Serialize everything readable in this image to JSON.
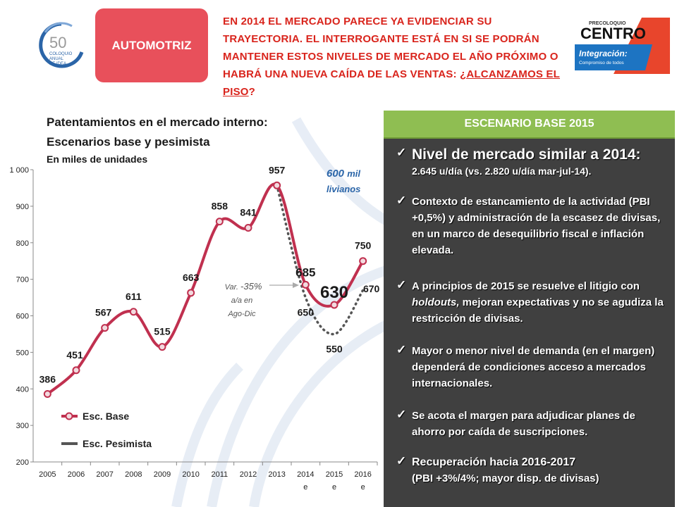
{
  "header": {
    "badge": "AUTOMOTRIZ",
    "headline_main": "EN 2014 EL MERCADO PARECE YA EVIDENCIAR SU TRAYECTORIA. EL INTERROGANTE ESTÁ EN SI SE PODRÁN MANTENER ESTOS NIVELES DE MERCADO EL AÑO PRÓXIMO O HABRÁ UNA NUEVA CAÍDA DE LAS VENTAS:",
    "headline_underlined": "¿ALCANZAMOS EL PISO",
    "headline_end": "?"
  },
  "logo_left": {
    "number": "50",
    "line1": "COLOQUIO",
    "line2": "ANUAL",
    "line3": "DE IDEA"
  },
  "logo_right": {
    "top": "PRECOLOQUIO",
    "name": "CENTRO",
    "slogan": "Integración:",
    "slogan_sub": "Compromiso de todos"
  },
  "chart_title": {
    "line1": "Patentamientos en el mercado interno:",
    "line2": "Escenarios base y pesimista",
    "line3": "En miles de unidades"
  },
  "chart_data": {
    "type": "line",
    "categories": [
      "2005",
      "2006",
      "2007",
      "2008",
      "2009",
      "2010",
      "2011",
      "2012",
      "2013",
      "2014 e",
      "2015 e",
      "2016 e"
    ],
    "series": [
      {
        "name": "Esc. Base",
        "color": "#c0304f",
        "values": [
          386,
          451,
          567,
          611,
          515,
          663,
          858,
          841,
          957,
          685,
          630,
          750
        ]
      },
      {
        "name": "Esc. Pesimista",
        "color": "#555555",
        "values": [
          null,
          null,
          null,
          null,
          null,
          null,
          null,
          null,
          957,
          650,
          550,
          670
        ]
      }
    ],
    "data_labels": [
      "386",
      "451",
      "567",
      "611",
      "515",
      "663",
      "858",
      "841",
      "957",
      "685",
      "630",
      "750"
    ],
    "pesimista_labels": [
      "650",
      "550",
      "670"
    ],
    "ylim": [
      200,
      1000
    ],
    "yticks": [
      "1 000",
      "900",
      "800",
      "700",
      "600",
      "500",
      "400",
      "300",
      "200"
    ],
    "ytick_values": [
      1000,
      900,
      800,
      700,
      600,
      500,
      400,
      300,
      200
    ],
    "annotation_livianos": {
      "value": "600",
      "unit": "mil",
      "line2": "livianos"
    },
    "annotation_var": {
      "line1a": "Var. ",
      "line1b": "-35%",
      "line2": "a/a en",
      "line3": "Ago-Dic"
    },
    "legend": [
      "Esc. Base",
      "Esc. Pesimista"
    ],
    "legend_position": "bottom-left"
  },
  "panel": {
    "title": "ESCENARIO BASE 2015",
    "bullets": [
      {
        "main": "Nivel de mercado similar a 2014:",
        "sub": "2.645 u/día (vs. 2.820 u/día mar-jul-14)."
      },
      {
        "text": "Contexto de estancamiento de la actividad (PBI +0,5%) y administración de la escasez de divisas, en un marco de desequilibrio fiscal e inflación elevada."
      },
      {
        "text_a": "A principios de 2015 se resuelve el litigio con ",
        "text_it": "holdouts,",
        "text_b": " mejoran expectativas y no se agudiza la restricción de divisas."
      },
      {
        "text": "Mayor o menor nivel de demanda (en el margen) dependerá de condiciones acceso a mercados internacionales."
      },
      {
        "text": "Se acota el margen para adjudicar planes de ahorro por caída de suscripciones."
      },
      {
        "main": "Recuperación hacia 2016-2017",
        "sub": "(PBI +3%/4%; mayor disp. de divisas)"
      }
    ]
  }
}
